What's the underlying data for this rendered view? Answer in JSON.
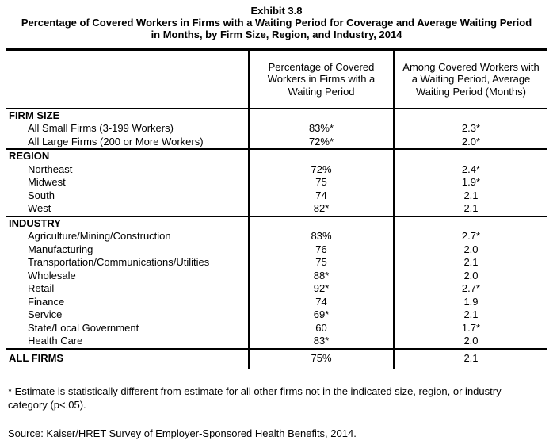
{
  "exhibit": {
    "title": "Exhibit 3.8",
    "subtitle": "Percentage of Covered Workers in Firms with a Waiting Period for Coverage and Average Waiting Period in Months, by Firm Size, Region, and Industry, 2014"
  },
  "table": {
    "col_headers": [
      "Percentage of Covered Workers in Firms with a Waiting Period",
      "Among Covered Workers with a Waiting Period, Average Waiting Period (Months)"
    ],
    "sections": [
      {
        "header": "FIRM SIZE",
        "rows": [
          {
            "label": "All Small Firms (3-199 Workers)",
            "pct": "83%*",
            "months": "2.3*"
          },
          {
            "label": "All Large Firms (200 or More Workers)",
            "pct": "72%*",
            "months": "2.0*"
          }
        ]
      },
      {
        "header": "REGION",
        "rows": [
          {
            "label": "Northeast",
            "pct": "72%",
            "months": "2.4*"
          },
          {
            "label": "Midwest",
            "pct": "75",
            "months": "1.9*"
          },
          {
            "label": "South",
            "pct": "74",
            "months": "2.1"
          },
          {
            "label": "West",
            "pct": "82*",
            "months": "2.1"
          }
        ]
      },
      {
        "header": "INDUSTRY",
        "rows": [
          {
            "label": "Agriculture/Mining/Construction",
            "pct": "83%",
            "months": "2.7*"
          },
          {
            "label": "Manufacturing",
            "pct": "76",
            "months": "2.0"
          },
          {
            "label": "Transportation/Communications/Utilities",
            "pct": "75",
            "months": "2.1"
          },
          {
            "label": "Wholesale",
            "pct": "88*",
            "months": "2.0"
          },
          {
            "label": "Retail",
            "pct": "92*",
            "months": "2.7*"
          },
          {
            "label": "Finance",
            "pct": "74",
            "months": "1.9"
          },
          {
            "label": "Service",
            "pct": "69*",
            "months": "2.1"
          },
          {
            "label": "State/Local Government",
            "pct": "60",
            "months": "1.7*"
          },
          {
            "label": "Health Care",
            "pct": "83*",
            "months": "2.0"
          }
        ]
      }
    ],
    "total_row": {
      "label": "ALL FIRMS",
      "pct": "75%",
      "months": "2.1"
    }
  },
  "footnote": "* Estimate is statistically different from estimate for all other firms not in the indicated size, region, or industry category (p<.05).",
  "source": "Source: Kaiser/HRET Survey of Employer-Sponsored Health Benefits, 2014."
}
